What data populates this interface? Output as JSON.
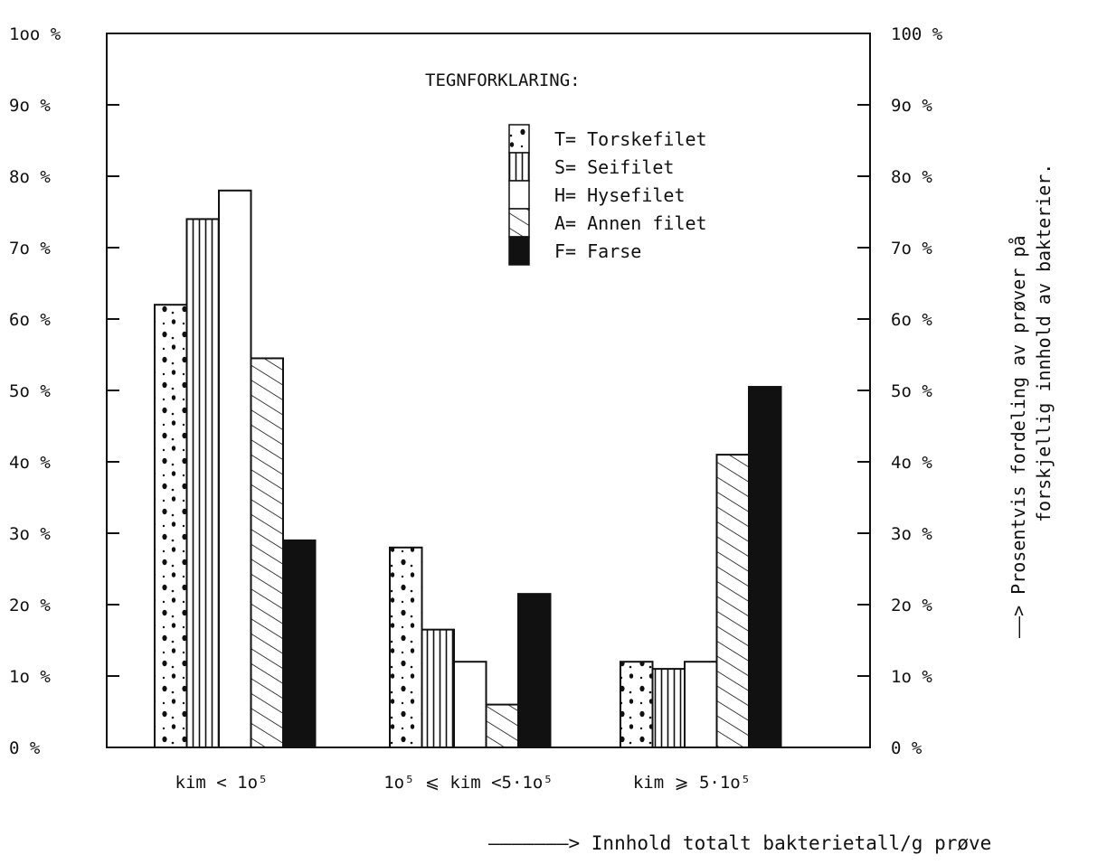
{
  "chart_data": {
    "type": "bar",
    "categories": [
      "kim < 1o⁵",
      "1o⁵ ⩽ kim <5·1o⁵",
      "kim ⩾ 5·1o⁵"
    ],
    "series": [
      {
        "name": "T= Torskefilet",
        "key": "T",
        "pattern": "dots",
        "values": [
          62,
          28,
          12
        ]
      },
      {
        "name": "S= Seifilet",
        "key": "S",
        "pattern": "vlines",
        "values": [
          74,
          16.5,
          11
        ]
      },
      {
        "name": "H= Hysefilet",
        "key": "H",
        "pattern": "blank",
        "values": [
          78,
          12,
          12
        ]
      },
      {
        "name": "A= Annen filet",
        "key": "A",
        "pattern": "diag",
        "values": [
          54.5,
          6,
          41
        ]
      },
      {
        "name": "F= Farse",
        "key": "F",
        "pattern": "solid",
        "values": [
          29,
          21.5,
          50.5
        ]
      }
    ],
    "ylim": [
      0,
      100
    ],
    "y_ticks_left": [
      "0 %",
      "1o %",
      "2o %",
      "3o %",
      "4o %",
      "5o %",
      "6o %",
      "7o %",
      "8o %",
      "9o %",
      "1oo %"
    ],
    "y_ticks_right": [
      "0 %",
      "1o %",
      "2o %",
      "3o %",
      "4o %",
      "5o %",
      "6o %",
      "7o %",
      "8o %",
      "9o %",
      "100 %"
    ],
    "legend_title": "TEGNFORKLARING:",
    "legend_position": "top-center",
    "ylabel_line1": "——> Prosentvis fordeling av prøver på",
    "ylabel_line2": "forskjellig innhold av bakterier.",
    "xlabel": "———————> Innhold totalt bakterietall/g prøve",
    "grid": false
  }
}
